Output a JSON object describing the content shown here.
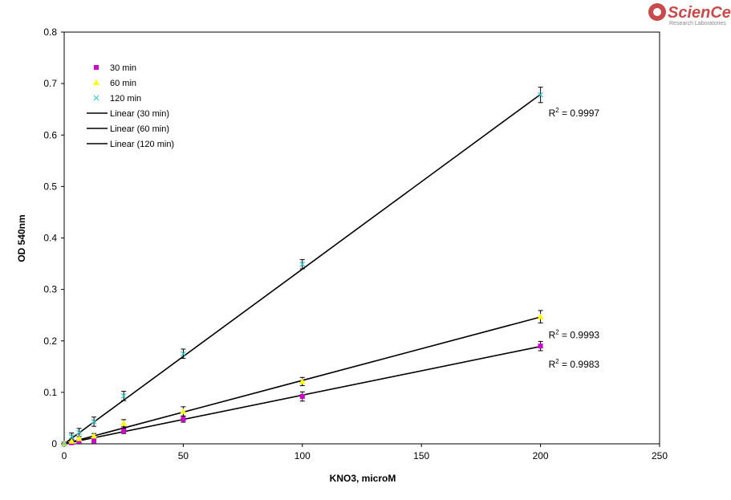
{
  "logo": {
    "name": "ScienCell",
    "tagline": "Research Laboratories",
    "color": "#c94a4a"
  },
  "chart_data": {
    "type": "scatter",
    "xlabel": "KNO3, microM",
    "ylabel": "OD 540nm",
    "xlim": [
      0,
      250
    ],
    "ylim": [
      0,
      0.8
    ],
    "xticks": [
      0,
      50,
      100,
      150,
      200,
      250
    ],
    "yticks": [
      0,
      0.1,
      0.2,
      0.3,
      0.4,
      0.5,
      0.6,
      0.7,
      0.8
    ],
    "grid": false,
    "legend_position": "top-left",
    "series": [
      {
        "name": "30 min",
        "marker": "square",
        "color": "#cc00cc",
        "x": [
          0,
          3.125,
          6.25,
          12.5,
          25,
          50,
          100,
          200
        ],
        "y": [
          0.0,
          0.002,
          0.005,
          0.006,
          0.025,
          0.048,
          0.092,
          0.19
        ],
        "error": [
          0.003,
          0.003,
          0.004,
          0.004,
          0.005,
          0.006,
          0.009,
          0.009
        ],
        "fit": {
          "name": "Linear (30 min)",
          "slope": 0.000946,
          "intercept": 0.0,
          "r2_label": "R2 = 0.9983"
        }
      },
      {
        "name": "60 min",
        "marker": "triangle",
        "color": "#ffff00",
        "x": [
          0,
          3.125,
          6.25,
          12.5,
          25,
          50,
          100,
          200
        ],
        "y": [
          0.0,
          0.005,
          0.01,
          0.015,
          0.04,
          0.063,
          0.121,
          0.247
        ],
        "error": [
          0.003,
          0.004,
          0.004,
          0.005,
          0.007,
          0.009,
          0.008,
          0.012
        ],
        "fit": {
          "name": "Linear (60 min)",
          "slope": 0.001232,
          "intercept": 0.0,
          "r2_label": "R2 = 0.9993"
        }
      },
      {
        "name": "120 min",
        "marker": "x",
        "color": "#33cccc",
        "x": [
          0,
          3.125,
          6.25,
          12.5,
          25,
          50,
          100,
          200
        ],
        "y": [
          0.0,
          0.014,
          0.022,
          0.043,
          0.093,
          0.175,
          0.349,
          0.678
        ],
        "error": [
          0.004,
          0.007,
          0.008,
          0.009,
          0.009,
          0.009,
          0.009,
          0.015
        ],
        "fit": {
          "name": "Linear (120 min)",
          "slope": 0.003395,
          "intercept": 0.0,
          "r2_label": "R2 = 0.9997"
        }
      }
    ]
  }
}
